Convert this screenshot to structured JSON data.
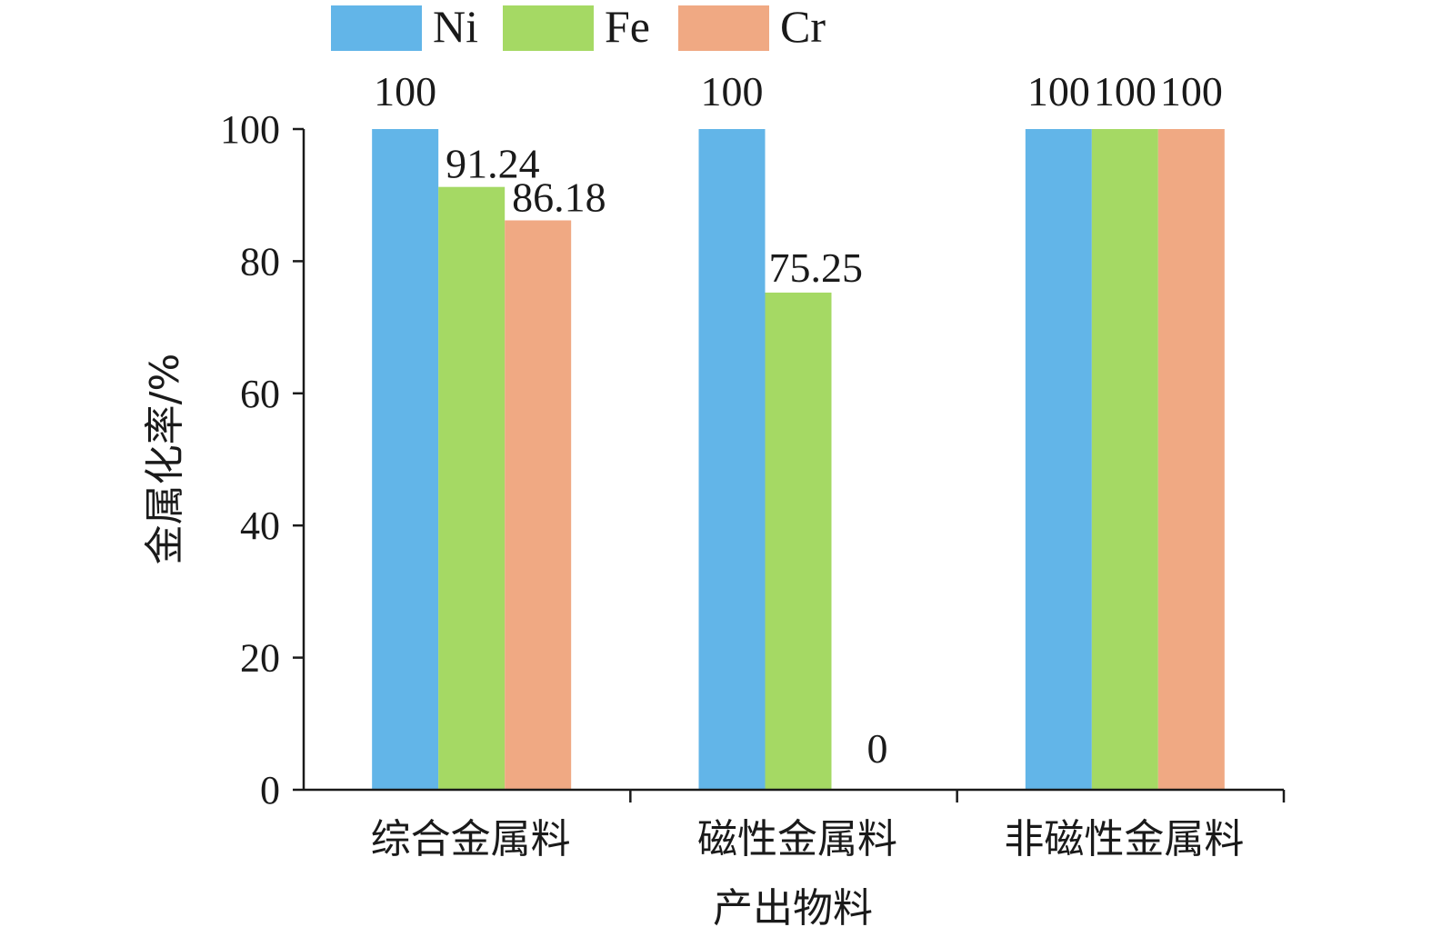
{
  "chart_data": {
    "type": "bar",
    "categories": [
      "综合金属料",
      "磁性金属料",
      "非磁性金属料"
    ],
    "series": [
      {
        "name": "Ni",
        "color": "#62b5e8",
        "values": [
          100,
          100,
          100
        ]
      },
      {
        "name": "Fe",
        "color": "#a5d964",
        "values": [
          91.24,
          75.25,
          100
        ]
      },
      {
        "name": "Cr",
        "color": "#f0a983",
        "values": [
          86.18,
          0,
          100
        ]
      }
    ],
    "data_labels": [
      [
        "100",
        "91.24",
        "86.18"
      ],
      [
        "100",
        "75.25",
        "0"
      ],
      [
        "100",
        "100",
        "100"
      ]
    ],
    "ylim": [
      0,
      100
    ],
    "yticks": [
      0,
      20,
      40,
      60,
      80,
      100
    ],
    "xlabel": "产出物料",
    "ylabel": "金属化率/%",
    "legend_position": "top",
    "grid": false
  }
}
